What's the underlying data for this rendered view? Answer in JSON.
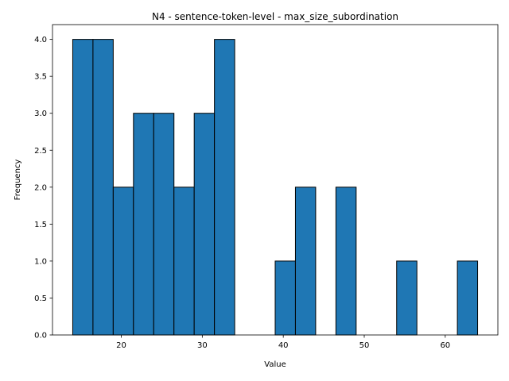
{
  "chart_data": {
    "type": "bar",
    "title": "N4 - sentence-token-level - max_size_subordination",
    "xlabel": "Value",
    "ylabel": "Frequency",
    "xlim": [
      11.5,
      66.5
    ],
    "ylim": [
      0,
      4.2
    ],
    "xticks": [
      20,
      30,
      40,
      50,
      60
    ],
    "yticks": [
      0.0,
      0.5,
      1.0,
      1.5,
      2.0,
      2.5,
      3.0,
      3.5,
      4.0
    ],
    "ytick_labels": [
      "0.0",
      "0.5",
      "1.0",
      "1.5",
      "2.0",
      "2.5",
      "3.0",
      "3.5",
      "4.0"
    ],
    "bin_edges": [
      14.0,
      16.5,
      19.0,
      21.5,
      24.0,
      26.5,
      29.0,
      31.5,
      34.0,
      36.5,
      39.0,
      41.5,
      44.0,
      46.5,
      49.0,
      51.5,
      54.0,
      56.5,
      59.0,
      61.5,
      64.0
    ],
    "values": [
      4,
      4,
      2,
      3,
      3,
      2,
      3,
      4,
      0,
      0,
      1,
      2,
      0,
      2,
      0,
      0,
      1,
      0,
      0,
      1
    ],
    "bar_color": "#1f77b4",
    "edge_color": "#000000",
    "grid": false,
    "legend": "none"
  }
}
